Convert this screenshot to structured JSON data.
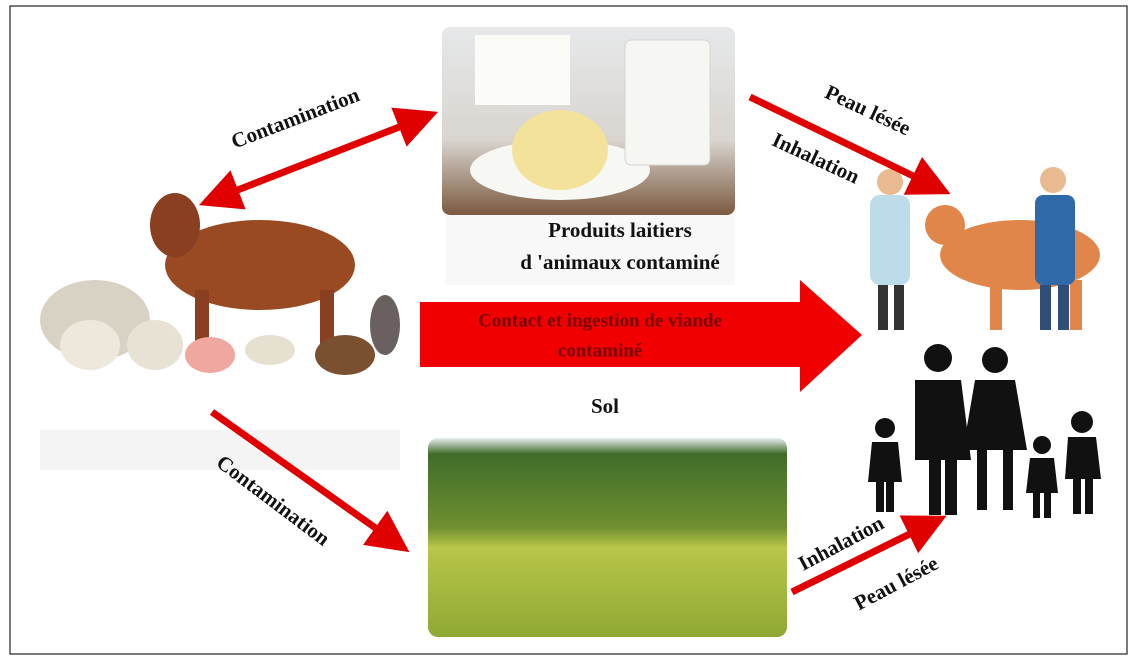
{
  "nodes": {
    "dairy": {
      "lines": [
        "Produits laitiers",
        "d 'animaux contaminé"
      ]
    },
    "soil": {
      "label": "Sol"
    }
  },
  "edges": {
    "animals_to_dairy": {
      "label": "Contamination"
    },
    "dairy_to_workers": {
      "labels": [
        "Peau lésée",
        "Inhalation"
      ]
    },
    "animals_to_humans": {
      "lines": [
        "Contact et ingestion de viande",
        "contaminé"
      ]
    },
    "animals_to_soil": {
      "label": "Contamination"
    },
    "soil_to_family": {
      "labels": [
        "Inhalation",
        "Peau lésée"
      ]
    }
  }
}
